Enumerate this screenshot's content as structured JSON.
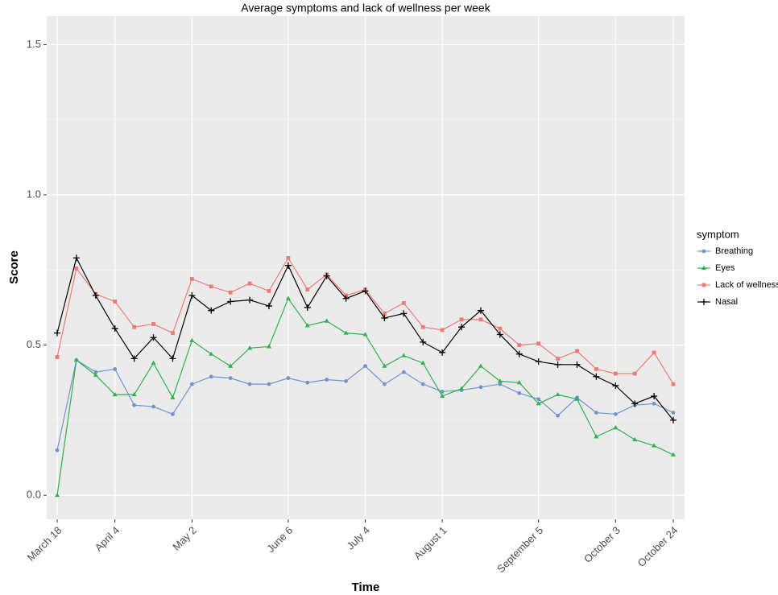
{
  "chart_data": {
    "type": "line",
    "title": "Average symptoms and lack of wellness per week",
    "x_label": "Time",
    "y_label": "Score",
    "categories": [
      "March 18",
      null,
      null,
      "April 4",
      null,
      null,
      null,
      "May 2",
      null,
      null,
      null,
      null,
      "June 6",
      null,
      null,
      null,
      "July 4",
      null,
      null,
      null,
      "August 1",
      null,
      null,
      null,
      null,
      "September 5",
      null,
      null,
      null,
      "October 3",
      null,
      null,
      "October 24"
    ],
    "ylim": [
      -0.08,
      1.595
    ],
    "yticks": [
      {
        "value": 0,
        "label": "0.0"
      },
      0.5,
      {
        "value": 1,
        "label": "1.0"
      },
      1.5
    ],
    "grid": true,
    "legend_title": "symptom",
    "legend": "right",
    "series": [
      {
        "name": "Breathing",
        "color": "#7094cd",
        "marker": "circle",
        "values": [
          0.15,
          0.45,
          0.41,
          0.42,
          0.3,
          0.295,
          0.27,
          0.37,
          0.395,
          0.39,
          0.37,
          0.37,
          0.39,
          0.375,
          0.385,
          0.38,
          0.43,
          0.37,
          0.41,
          0.37,
          0.345,
          0.35,
          0.36,
          0.37,
          0.34,
          0.32,
          0.265,
          0.325,
          0.275,
          0.27,
          0.3,
          0.305,
          0.275
        ]
      },
      {
        "name": "Eyes",
        "color": "#2eb24b",
        "marker": "triangle",
        "values": [
          0.0,
          0.45,
          0.4,
          0.335,
          0.335,
          0.44,
          0.325,
          0.515,
          0.47,
          0.43,
          0.49,
          0.495,
          0.655,
          0.565,
          0.58,
          0.54,
          0.535,
          0.43,
          0.465,
          0.44,
          0.33,
          0.355,
          0.43,
          0.38,
          0.375,
          0.305,
          0.335,
          0.32,
          0.195,
          0.225,
          0.185,
          0.165,
          0.135
        ]
      },
      {
        "name": "Lack of wellness",
        "color": "#f07b72",
        "marker": "square",
        "values": [
          0.46,
          0.755,
          0.67,
          0.645,
          0.56,
          0.57,
          0.54,
          0.72,
          0.695,
          0.675,
          0.705,
          0.68,
          0.79,
          0.685,
          0.735,
          0.665,
          0.685,
          0.605,
          0.64,
          0.56,
          0.55,
          0.585,
          0.585,
          0.555,
          0.5,
          0.505,
          0.455,
          0.48,
          0.42,
          0.405,
          0.405,
          0.475,
          0.37
        ]
      },
      {
        "name": "Nasal",
        "color": "#000000",
        "marker": "plus",
        "values": [
          0.54,
          0.79,
          0.665,
          0.555,
          0.455,
          0.525,
          0.455,
          0.665,
          0.615,
          0.645,
          0.65,
          0.63,
          0.765,
          0.625,
          0.73,
          0.655,
          0.68,
          0.59,
          0.605,
          0.51,
          0.475,
          0.56,
          0.615,
          0.535,
          0.47,
          0.445,
          0.435,
          0.435,
          0.395,
          0.365,
          0.305,
          0.33,
          0.25
        ]
      }
    ]
  }
}
